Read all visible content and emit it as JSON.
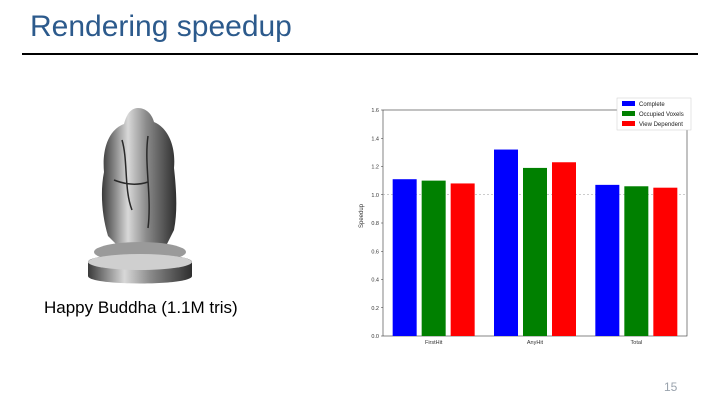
{
  "slide": {
    "title": "Rendering speedup",
    "caption": "Happy Buddha (1.1M tris)",
    "page_number": "15"
  },
  "colors": {
    "title": "#2c5a8c",
    "complete": "#0000ff",
    "occupied": "#008000",
    "view": "#ff0000"
  },
  "chart_data": {
    "type": "bar",
    "categories": [
      "FirstHit",
      "AnyHit",
      "Total"
    ],
    "series": [
      {
        "name": "Complete",
        "values": [
          1.11,
          1.32,
          1.07
        ]
      },
      {
        "name": "Occupied Voxels",
        "values": [
          1.1,
          1.19,
          1.06
        ]
      },
      {
        "name": "View Dependent",
        "values": [
          1.08,
          1.23,
          1.05
        ]
      }
    ],
    "ylabel": "Speedup",
    "ylim": [
      0,
      1.6
    ],
    "yticks": [
      "0.0",
      "0.2",
      "0.4",
      "0.6",
      "0.8",
      "1.0",
      "1.2",
      "1.4",
      "1.6"
    ],
    "reference_line": 1.0,
    "legend": "top-right"
  }
}
